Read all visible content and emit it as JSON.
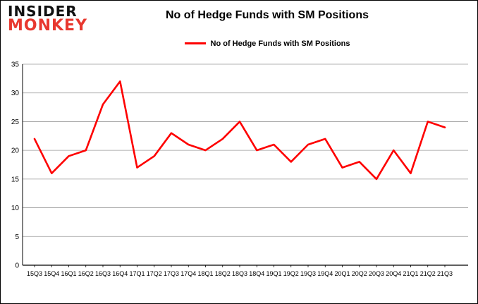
{
  "logo": {
    "line1": "INSIDER",
    "line2": "MONKEY"
  },
  "header": {
    "title": "No of Hedge Funds with SM Positions"
  },
  "legend": {
    "label": "No of Hedge Funds with SM Positions"
  },
  "colors": {
    "series_red": "#fe0000",
    "logo_red": "#e8382f",
    "grid": "#9a9a9a",
    "axis": "#000000"
  },
  "chart_data": {
    "type": "line",
    "title": "No of Hedge Funds with SM Positions",
    "categories": [
      "15Q3",
      "15Q4",
      "16Q1",
      "16Q2",
      "16Q3",
      "16Q4",
      "17Q1",
      "17Q2",
      "17Q3",
      "17Q4",
      "18Q1",
      "18Q2",
      "18Q3",
      "18Q4",
      "19Q1",
      "19Q2",
      "19Q3",
      "19Q4",
      "20Q1",
      "20Q2",
      "20Q3",
      "20Q4",
      "21Q1",
      "21Q2",
      "21Q3"
    ],
    "series": [
      {
        "name": "No of Hedge Funds with SM Positions",
        "color": "#fe0000",
        "values": [
          22,
          16,
          19,
          20,
          28,
          32,
          17,
          19,
          23,
          21,
          20,
          22,
          25,
          20,
          21,
          18,
          21,
          22,
          17,
          18,
          15,
          20,
          16,
          25,
          24
        ]
      }
    ],
    "xlabel": "",
    "ylabel": "",
    "ylim": [
      0,
      35
    ],
    "yticks": [
      0,
      5,
      10,
      15,
      20,
      25,
      30,
      35
    ],
    "grid": true,
    "legend_position": "top"
  }
}
